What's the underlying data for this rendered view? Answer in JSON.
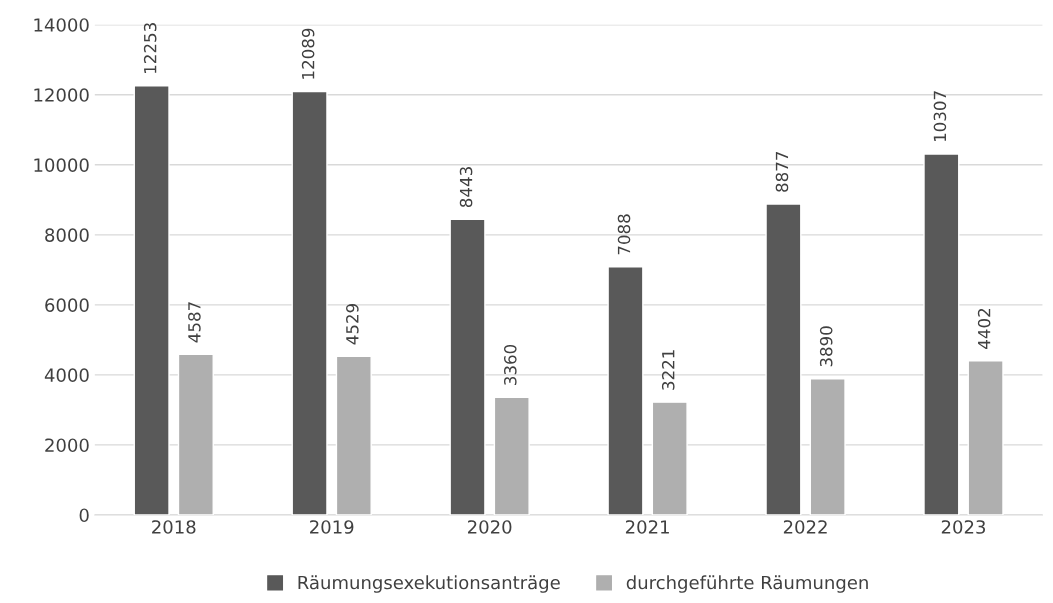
{
  "chart_data": {
    "type": "bar",
    "categories": [
      "2018",
      "2019",
      "2020",
      "2021",
      "2022",
      "2023"
    ],
    "series": [
      {
        "name": "Räumungsexekutionsanträge",
        "color": "#595959",
        "values": [
          12253,
          12089,
          8443,
          7088,
          8877,
          10307
        ]
      },
      {
        "name": "durchgeführte Räumungen",
        "color": "#afafaf",
        "values": [
          4587,
          4529,
          3360,
          3221,
          3890,
          4402
        ]
      }
    ],
    "ylim": [
      0,
      14000
    ],
    "yticks": [
      0,
      2000,
      4000,
      6000,
      8000,
      10000,
      12000,
      14000
    ],
    "grid": "y",
    "legend": "bottom",
    "data_labels": true
  }
}
